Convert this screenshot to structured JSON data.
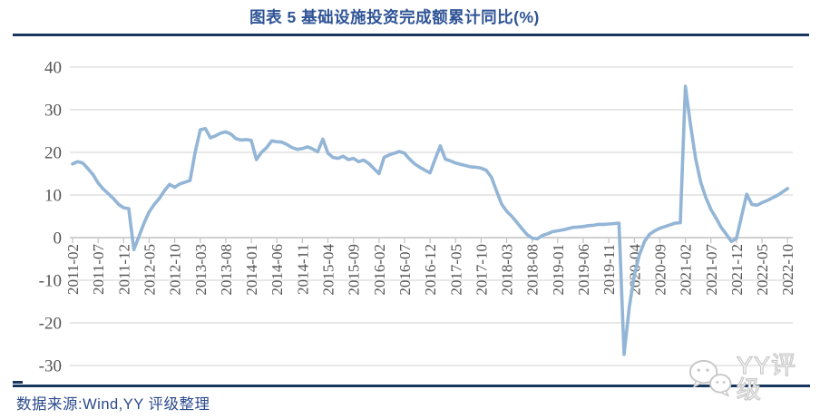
{
  "title": "图表 5 基础设施投资完成额累计同比(%)",
  "source_note": "数据来源:Wind,YY 评级整理",
  "watermark": {
    "label": "YY评级",
    "icon": "wechat-bubbles-icon"
  },
  "colors": {
    "accent_rule": "#17375E",
    "title_text": "#2F5496",
    "source_text": "#2B4A8B",
    "series_line": "#93B5D6",
    "gridline": "#D9D9D9",
    "axis_line": "#C1C1C1",
    "axis_label": "#555555",
    "watermark_outline": "#C8C8C8"
  },
  "chart_data": {
    "type": "line",
    "title": "图表 5 基础设施投资完成额累计同比(%)",
    "x_start": "2011-02",
    "x_step_months": 1,
    "x_tick_labels": [
      "2011-02",
      "2011-07",
      "2011-12",
      "2012-05",
      "2012-10",
      "2013-03",
      "2013-08",
      "2014-01",
      "2014-06",
      "2014-11",
      "2015-04",
      "2015-09",
      "2016-02",
      "2016-07",
      "2016-12",
      "2017-05",
      "2017-10",
      "2018-03",
      "2018-08",
      "2019-01",
      "2019-06",
      "2019-11",
      "2020-04",
      "2020-09",
      "2021-02",
      "2021-07",
      "2021-12",
      "2022-05",
      "2022-10"
    ],
    "y_ticks": [
      40,
      30,
      20,
      10,
      0,
      -10,
      -20,
      -30
    ],
    "ylim": [
      -30,
      40
    ],
    "grid": "horizontal",
    "legend": "none",
    "series": [
      {
        "name": "基础设施投资完成额累计同比(%)",
        "values": [
          17.3,
          17.8,
          17.5,
          16.2,
          14.8,
          12.8,
          11.4,
          10.3,
          9.2,
          7.8,
          7.0,
          6.8,
          -2.8,
          0.3,
          3.4,
          6.0,
          7.8,
          9.2,
          11.0,
          12.5,
          11.8,
          12.6,
          13.0,
          13.4,
          20.0,
          25.3,
          25.6,
          23.4,
          23.9,
          24.5,
          24.8,
          24.3,
          23.2,
          22.9,
          23.0,
          22.8,
          18.3,
          20.0,
          21.1,
          22.7,
          22.5,
          22.4,
          21.8,
          21.1,
          20.7,
          20.9,
          21.3,
          20.8,
          20.1,
          23.1,
          19.8,
          18.8,
          18.6,
          19.1,
          18.3,
          18.6,
          17.8,
          18.2,
          17.4,
          16.2,
          15.0,
          18.8,
          19.4,
          19.8,
          20.2,
          19.8,
          18.4,
          17.3,
          16.5,
          15.8,
          15.2,
          18.4,
          21.5,
          18.4,
          18.0,
          17.5,
          17.2,
          16.9,
          16.6,
          16.5,
          16.3,
          15.8,
          14.2,
          11.0,
          7.9,
          6.2,
          5.0,
          3.6,
          2.1,
          0.7,
          -0.1,
          -0.3,
          0.5,
          0.9,
          1.4,
          1.6,
          1.8,
          2.1,
          2.4,
          2.5,
          2.6,
          2.8,
          2.9,
          3.1,
          3.1,
          3.2,
          3.3,
          3.4,
          -27.4,
          -16.4,
          -8.8,
          -4.0,
          -0.9,
          0.8,
          1.6,
          2.2,
          2.6,
          3.0,
          3.4,
          3.5,
          35.5,
          26.5,
          18.5,
          13.0,
          9.4,
          6.6,
          4.6,
          2.4,
          0.8,
          -0.9,
          -0.2,
          5.0,
          10.2,
          7.8,
          7.6,
          8.2,
          8.7,
          9.3,
          9.9,
          10.7,
          11.5
        ]
      }
    ]
  }
}
